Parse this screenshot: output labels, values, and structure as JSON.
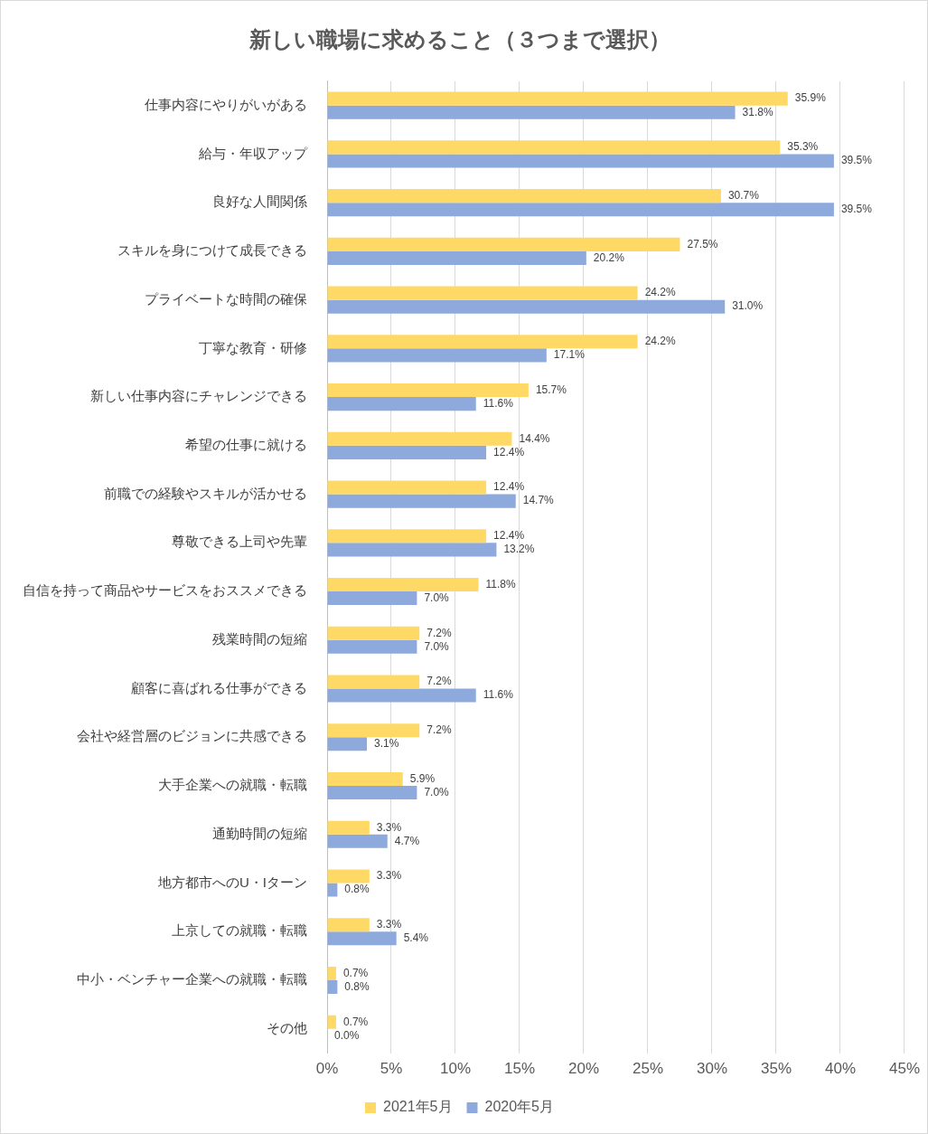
{
  "chart_data": {
    "type": "bar",
    "orientation": "horizontal",
    "title": "新しい職場に求めること（３つまで選択）",
    "categories": [
      "仕事内容にやりがいがある",
      "給与・年収アップ",
      "良好な人間関係",
      "スキルを身につけて成長できる",
      "プライベートな時間の確保",
      "丁寧な教育・研修",
      "新しい仕事内容にチャレンジできる",
      "希望の仕事に就ける",
      "前職での経験やスキルが活かせる",
      "尊敬できる上司や先輩",
      "自信を持って商品やサービスをおススメできる",
      "残業時間の短縮",
      "顧客に喜ばれる仕事ができる",
      "会社や経営層のビジョンに共感できる",
      "大手企業への就職・転職",
      "通勤時間の短縮",
      "地方都市へのU・Iターン",
      "上京しての就職・転職",
      "中小・ベンチャー企業への就職・転職",
      "その他"
    ],
    "series": [
      {
        "name": "2021年5月",
        "color": "#FFD966",
        "values": [
          35.9,
          35.3,
          30.7,
          27.5,
          24.2,
          24.2,
          15.7,
          14.4,
          12.4,
          12.4,
          11.8,
          7.2,
          7.2,
          7.2,
          5.9,
          3.3,
          3.3,
          3.3,
          0.7,
          0.7
        ],
        "value_labels": [
          "35.9%",
          "35.3%",
          "30.7%",
          "27.5%",
          "24.2%",
          "24.2%",
          "15.7%",
          "14.4%",
          "12.4%",
          "12.4%",
          "11.8%",
          "7.2%",
          "7.2%",
          "7.2%",
          "5.9%",
          "3.3%",
          "3.3%",
          "3.3%",
          "0.7%",
          "0.7%"
        ]
      },
      {
        "name": "2020年5月",
        "color": "#8EA9DB",
        "values": [
          31.8,
          39.5,
          39.5,
          20.2,
          31.0,
          17.1,
          11.6,
          12.4,
          14.7,
          13.2,
          7.0,
          7.0,
          11.6,
          3.1,
          7.0,
          4.7,
          0.8,
          5.4,
          0.8,
          0.0
        ],
        "value_labels": [
          "31.8%",
          "39.5%",
          "39.5%",
          "20.2%",
          "31.0%",
          "17.1%",
          "11.6%",
          "12.4%",
          "14.7%",
          "13.2%",
          "7.0%",
          "7.0%",
          "11.6%",
          "3.1%",
          "7.0%",
          "4.7%",
          "0.8%",
          "5.4%",
          "0.8%",
          "0.0%"
        ]
      }
    ],
    "xlim": [
      0,
      45
    ],
    "xticks": [
      {
        "value": 0,
        "label": "0%"
      },
      {
        "value": 5,
        "label": "5%"
      },
      {
        "value": 10,
        "label": "10%"
      },
      {
        "value": 15,
        "label": "15%"
      },
      {
        "value": 20,
        "label": "20%"
      },
      {
        "value": 25,
        "label": "25%"
      },
      {
        "value": 30,
        "label": "30%"
      },
      {
        "value": 35,
        "label": "35%"
      },
      {
        "value": 40,
        "label": "40%"
      },
      {
        "value": 45,
        "label": "45%"
      }
    ],
    "grid": true,
    "legend": "bottom",
    "data_labels": true
  }
}
